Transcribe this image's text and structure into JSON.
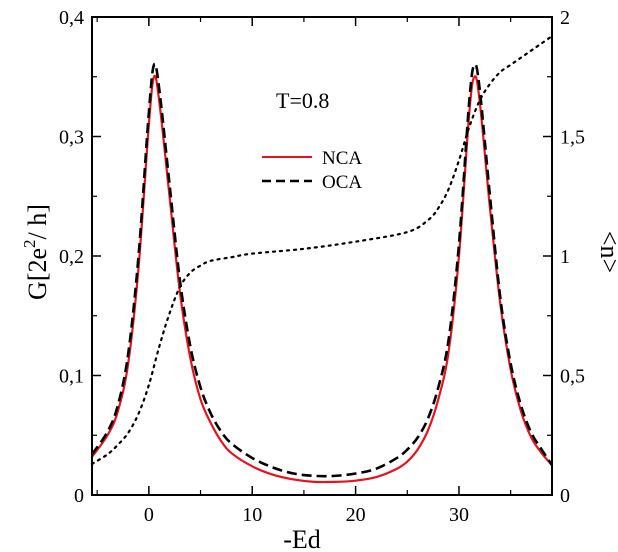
{
  "chart_data": {
    "type": "line",
    "title": "",
    "xlabel": "-Ed",
    "ylabel_main": "G[2e",
    "ylabel_sup": "2",
    "ylabel_tail": "/ h]",
    "ylabel_right": "<n>",
    "annotation": "T=0.8",
    "xlim": [
      -5.5,
      39
    ],
    "ylim_left": [
      0,
      0.4
    ],
    "ylim_right": [
      0,
      2
    ],
    "x_ticks": [
      {
        "value": 0,
        "label": "0"
      },
      {
        "value": 10,
        "label": "10"
      },
      {
        "value": 20,
        "label": "20"
      },
      {
        "value": 30,
        "label": "30"
      }
    ],
    "y_left_ticks": [
      {
        "value": 0,
        "label": "0"
      },
      {
        "value": 0.1,
        "label": "0,1"
      },
      {
        "value": 0.2,
        "label": "0,2"
      },
      {
        "value": 0.3,
        "label": "0,3"
      },
      {
        "value": 0.4,
        "label": "0,4"
      }
    ],
    "y_right_ticks": [
      {
        "value": 0,
        "label": "0"
      },
      {
        "value": 0.5,
        "label": "0,5"
      },
      {
        "value": 1,
        "label": "1"
      },
      {
        "value": 1.5,
        "label": "1,5"
      },
      {
        "value": 2,
        "label": "2"
      }
    ],
    "legend": [
      {
        "name": "NCA",
        "color": "#e8121c",
        "dash": "solid"
      },
      {
        "name": "OCA",
        "color": "#000000",
        "dash": "dashed"
      }
    ],
    "series": [
      {
        "name": "NCA",
        "axis": "left",
        "color": "#e8121c",
        "dash": "solid",
        "x": [
          -5.5,
          -4,
          -3,
          -2,
          -1,
          0,
          0.5,
          1,
          2,
          3,
          4,
          5,
          6,
          7,
          8,
          10,
          12,
          14,
          16,
          18,
          20,
          22,
          24,
          25,
          26,
          27,
          28,
          29,
          30,
          31,
          31.5,
          32,
          33,
          34,
          35,
          36,
          37,
          38,
          39
        ],
        "y": [
          0.032,
          0.05,
          0.07,
          0.11,
          0.19,
          0.31,
          0.35,
          0.33,
          0.25,
          0.17,
          0.115,
          0.08,
          0.06,
          0.045,
          0.035,
          0.024,
          0.017,
          0.013,
          0.011,
          0.011,
          0.012,
          0.015,
          0.022,
          0.028,
          0.038,
          0.054,
          0.08,
          0.12,
          0.2,
          0.32,
          0.35,
          0.33,
          0.24,
          0.16,
          0.105,
          0.07,
          0.048,
          0.035,
          0.025
        ]
      },
      {
        "name": "OCA",
        "axis": "left",
        "color": "#000000",
        "dash": "dashed",
        "x": [
          -5.5,
          -4,
          -3,
          -2,
          -1,
          0,
          0.5,
          1,
          2,
          3,
          4,
          5,
          6,
          7,
          8,
          10,
          12,
          14,
          16,
          18,
          20,
          22,
          24,
          25,
          26,
          27,
          28,
          29,
          30,
          31,
          31.5,
          32,
          33,
          34,
          35,
          36,
          37,
          38,
          39
        ],
        "y": [
          0.034,
          0.053,
          0.075,
          0.118,
          0.2,
          0.32,
          0.36,
          0.34,
          0.26,
          0.18,
          0.125,
          0.09,
          0.068,
          0.053,
          0.043,
          0.031,
          0.023,
          0.018,
          0.016,
          0.016,
          0.018,
          0.022,
          0.031,
          0.038,
          0.048,
          0.064,
          0.09,
          0.13,
          0.21,
          0.33,
          0.36,
          0.34,
          0.25,
          0.165,
          0.11,
          0.075,
          0.052,
          0.038,
          0.025
        ]
      },
      {
        "name": "<n>",
        "axis": "right",
        "color": "#000000",
        "dash": "dotted",
        "x": [
          -5.5,
          -4,
          -3,
          -2,
          -1,
          0,
          1,
          2,
          3,
          4,
          5,
          6,
          8,
          10,
          15,
          20,
          25,
          27,
          28,
          29,
          30,
          31,
          32,
          33,
          34,
          35,
          36,
          37,
          38,
          39
        ],
        "y": [
          0.13,
          0.17,
          0.21,
          0.26,
          0.34,
          0.46,
          0.62,
          0.76,
          0.87,
          0.93,
          0.96,
          0.98,
          0.995,
          1.01,
          1.03,
          1.06,
          1.1,
          1.15,
          1.2,
          1.28,
          1.4,
          1.54,
          1.65,
          1.72,
          1.77,
          1.8,
          1.83,
          1.86,
          1.89,
          1.92
        ]
      }
    ]
  }
}
